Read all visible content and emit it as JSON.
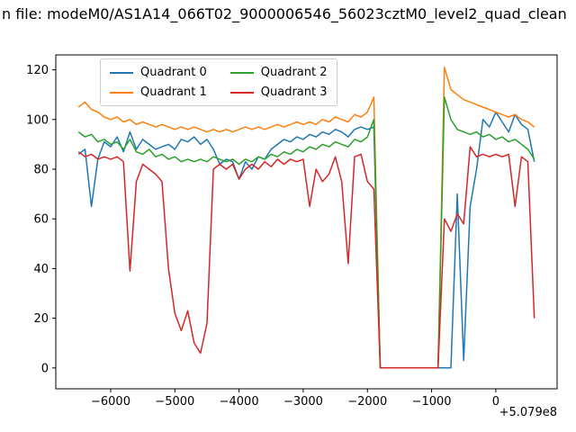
{
  "title": "n file: modeM0/AS1A14_066T02_9000006546_56023cztM0_level2_quad_clean",
  "chart_data": {
    "type": "line",
    "title": "n file: modeM0/AS1A14_066T02_9000006546_56023cztM0_level2_quad_clean",
    "xlabel": "",
    "ylabel": "",
    "x_offset_label": "+5.079e8",
    "legend_position": "upper left, 2 columns",
    "grid": false,
    "xlim": [
      -6855,
      955
    ],
    "ylim": [
      -8.4,
      126
    ],
    "xticks": [
      {
        "v": -6000,
        "label": "−6000"
      },
      {
        "v": -5000,
        "label": "−5000"
      },
      {
        "v": -4000,
        "label": "−4000"
      },
      {
        "v": -3000,
        "label": "−3000"
      },
      {
        "v": -2000,
        "label": "−2000"
      },
      {
        "v": -1000,
        "label": "−1000"
      },
      {
        "v": 0,
        "label": "0"
      }
    ],
    "yticks": [
      {
        "v": 0,
        "label": "0"
      },
      {
        "v": 20,
        "label": "20"
      },
      {
        "v": 40,
        "label": "40"
      },
      {
        "v": 60,
        "label": "60"
      },
      {
        "v": 80,
        "label": "80"
      },
      {
        "v": 100,
        "label": "100"
      },
      {
        "v": 120,
        "label": "120"
      }
    ],
    "x": [
      -6500,
      -6400,
      -6300,
      -6200,
      -6100,
      -6000,
      -5900,
      -5800,
      -5700,
      -5600,
      -5500,
      -5400,
      -5300,
      -5200,
      -5100,
      -5000,
      -4900,
      -4800,
      -4700,
      -4600,
      -4500,
      -4400,
      -4300,
      -4200,
      -4100,
      -4000,
      -3900,
      -3800,
      -3700,
      -3600,
      -3500,
      -3400,
      -3300,
      -3200,
      -3100,
      -3000,
      -2900,
      -2800,
      -2700,
      -2600,
      -2500,
      -2400,
      -2300,
      -2200,
      -2100,
      -2000,
      -1900,
      -1800,
      -1700,
      -1600,
      -1500,
      -1400,
      -1300,
      -1200,
      -1100,
      -1000,
      -900,
      -800,
      -700,
      -600,
      -500,
      -400,
      -300,
      -200,
      -100,
      0,
      100,
      200,
      300,
      400,
      500,
      600
    ],
    "series": [
      {
        "name": "Quadrant 0",
        "color": "#1f77b4",
        "values": [
          86,
          88,
          65,
          84,
          91,
          89,
          93,
          87,
          95,
          88,
          92,
          90,
          88,
          89,
          90,
          88,
          92,
          91,
          93,
          90,
          92,
          88,
          82,
          84,
          83,
          76,
          83,
          80,
          85,
          84,
          88,
          90,
          92,
          91,
          93,
          92,
          94,
          93,
          95,
          94,
          96,
          95,
          93,
          96,
          97,
          96,
          97,
          0,
          0,
          0,
          0,
          0,
          0,
          0,
          0,
          0,
          0,
          0,
          0,
          70,
          3,
          65,
          80,
          100,
          97,
          103,
          99,
          95,
          102,
          98,
          96,
          83
        ]
      },
      {
        "name": "Quadrant 1",
        "color": "#ff7f0e",
        "values": [
          105,
          107,
          104,
          103,
          101,
          100,
          101,
          99,
          100,
          98,
          99,
          98,
          97,
          98,
          97,
          96,
          97,
          96,
          97,
          96,
          95,
          96,
          95,
          96,
          95,
          96,
          97,
          96,
          97,
          96,
          97,
          98,
          97,
          98,
          99,
          98,
          99,
          98,
          100,
          99,
          101,
          100,
          99,
          102,
          101,
          103,
          109,
          0,
          0,
          0,
          0,
          0,
          0,
          0,
          0,
          0,
          0,
          121,
          112,
          110,
          108,
          107,
          106,
          105,
          104,
          103,
          102,
          101,
          102,
          100,
          99,
          97
        ]
      },
      {
        "name": "Quadrant 2",
        "color": "#2ca02c",
        "values": [
          95,
          93,
          94,
          91,
          92,
          90,
          91,
          88,
          92,
          87,
          86,
          88,
          85,
          86,
          84,
          85,
          83,
          84,
          83,
          84,
          83,
          85,
          84,
          83,
          84,
          82,
          84,
          83,
          85,
          84,
          86,
          85,
          87,
          86,
          88,
          87,
          89,
          88,
          90,
          89,
          91,
          90,
          89,
          92,
          91,
          93,
          100,
          0,
          0,
          0,
          0,
          0,
          0,
          0,
          0,
          0,
          0,
          109,
          100,
          96,
          95,
          94,
          95,
          93,
          94,
          92,
          93,
          91,
          92,
          90,
          88,
          84
        ]
      },
      {
        "name": "Quadrant 3",
        "color": "#d62728",
        "values": [
          87,
          85,
          86,
          84,
          85,
          84,
          85,
          83,
          39,
          75,
          82,
          80,
          78,
          75,
          40,
          22,
          15,
          23,
          10,
          6,
          18,
          80,
          82,
          80,
          82,
          76,
          80,
          82,
          80,
          83,
          81,
          84,
          82,
          84,
          83,
          84,
          65,
          80,
          75,
          78,
          85,
          75,
          42,
          85,
          86,
          75,
          72,
          0,
          0,
          0,
          0,
          0,
          0,
          0,
          0,
          0,
          0,
          60,
          55,
          62,
          58,
          89,
          85,
          86,
          85,
          86,
          85,
          86,
          65,
          85,
          83,
          20
        ]
      }
    ]
  }
}
